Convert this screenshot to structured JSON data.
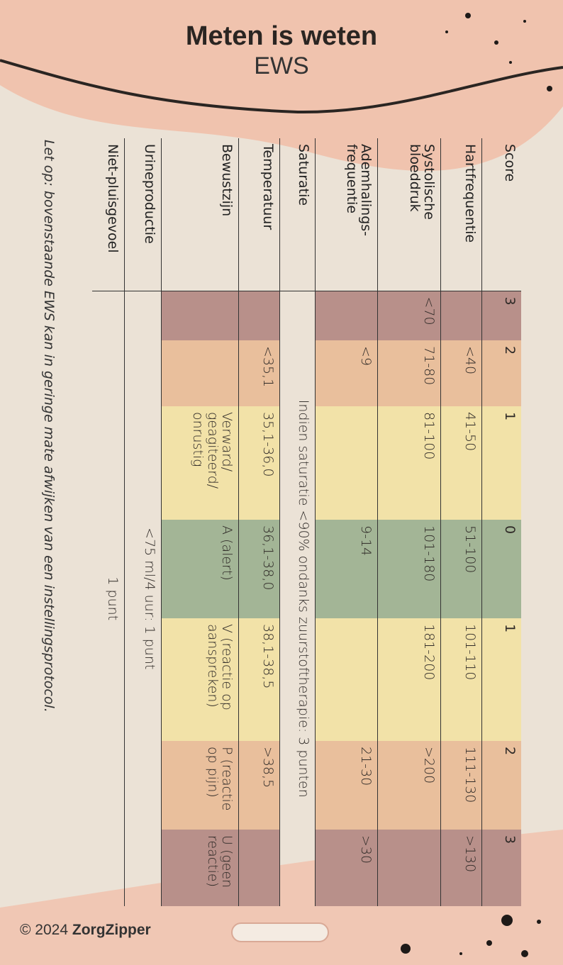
{
  "header": {
    "title": "Meten is weten",
    "subtitle": "EWS"
  },
  "table": {
    "header": [
      "Score",
      "3",
      "2",
      "1",
      "0",
      "1",
      "2",
      "3"
    ],
    "rows": [
      [
        "Hartfrequentie",
        "",
        "<40",
        "41-50",
        "51-100",
        "101-110",
        "111-130",
        ">130"
      ],
      [
        "Systolische bloeddruk",
        "<70",
        "71-80",
        "81-100",
        "101-180",
        "181-200",
        ">200",
        ""
      ],
      [
        "Ademhalings-frequentie",
        "",
        "<9",
        "",
        "9-14",
        "",
        "21-30",
        ">30"
      ],
      [
        "Saturatie",
        "Indien saturatie <90% ondanks zuurstoftherapie: 3 punten"
      ],
      [
        "Temperatuur",
        "",
        "<35,1",
        "35,1-36,0",
        "36,1-38,0",
        "38,1-38,5",
        ">38,5",
        ""
      ],
      [
        "Bewustzijn",
        "",
        "",
        "Verward/ geagiteerd/ onrustig",
        "A (alert)",
        "V (reactie op aanspreken)",
        "P (reactie op pijn)",
        "U (geen reactie)"
      ],
      [
        "Urineproductie",
        "<75 ml/4 uur: 1 punt"
      ],
      [
        "Niet-pluisgevoel",
        "1 punt"
      ]
    ]
  },
  "note": "Let op: bovenstaande EWS kan in geringe mate afwijken van een instellingsprotocol.",
  "footer": {
    "copyright": "© 2024",
    "brand": "ZorgZipper"
  }
}
